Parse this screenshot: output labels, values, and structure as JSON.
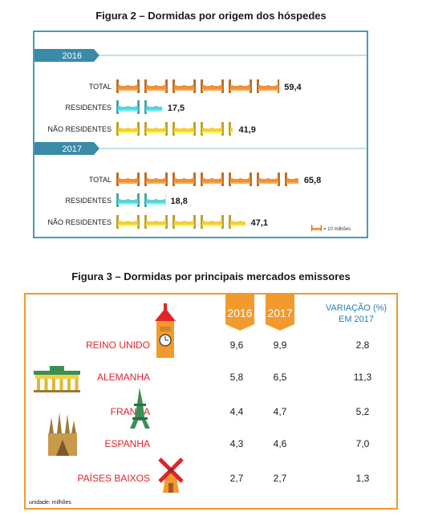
{
  "figure2": {
    "title": "Figura 2 – Dormidas por origem dos hóspedes",
    "legend": "= 10 milhões",
    "colors": {
      "total": "#f0903a",
      "residentes": "#5fd3d3",
      "nao_residentes": "#f2cf3e",
      "year_banner": "#3a8ba8"
    },
    "chart_data": {
      "type": "pictogram",
      "unit_value": 10,
      "groups": [
        {
          "year": "2016",
          "rows": [
            {
              "key": "total",
              "label": "TOTAL",
              "value": 59.4,
              "value_label": "59,4"
            },
            {
              "key": "residentes",
              "label": "RESIDENTES",
              "value": 17.5,
              "value_label": "17,5"
            },
            {
              "key": "nao_residentes",
              "label": "NÃO RESIDENTES",
              "value": 41.9,
              "value_label": "41,9"
            }
          ]
        },
        {
          "year": "2017",
          "rows": [
            {
              "key": "total",
              "label": "TOTAL",
              "value": 65.8,
              "value_label": "65,8"
            },
            {
              "key": "residentes",
              "label": "RESIDENTES",
              "value": 18.8,
              "value_label": "18,8"
            },
            {
              "key": "nao_residentes",
              "label": "NÃO RESIDENTES",
              "value": 47.1,
              "value_label": "47,1"
            }
          ]
        }
      ]
    }
  },
  "figure3": {
    "title": "Figura 3 – Dormidas por principais mercados emissores",
    "headers": [
      "2016",
      "2017",
      "VARIAÇÃO (%)",
      "EM 2017"
    ],
    "unit_note": "unidade: milhões",
    "colors": {
      "header": "#f39a2e",
      "country": "#e2232a",
      "variation": "#2a7fb0"
    },
    "chart_data": {
      "type": "table",
      "columns": [
        "2016",
        "2017",
        "VARIAÇÃO (%) EM 2017"
      ],
      "rows": [
        {
          "country": "REINO UNIDO",
          "icon": "big-ben-icon",
          "v2016": "9,6",
          "v2017": "9,9",
          "var": "2,8"
        },
        {
          "country": "ALEMANHA",
          "icon": "brandenburg-gate-icon",
          "v2016": "5,8",
          "v2017": "6,5",
          "var": "11,3"
        },
        {
          "country": "FRANÇA",
          "icon": "eiffel-tower-icon",
          "v2016": "4,4",
          "v2017": "4,7",
          "var": "5,2"
        },
        {
          "country": "ESPANHA",
          "icon": "sagrada-familia-icon",
          "v2016": "4,3",
          "v2017": "4,6",
          "var": "7,0"
        },
        {
          "country": "PAÍSES BAIXOS",
          "icon": "windmill-icon",
          "v2016": "2,7",
          "v2017": "2,7",
          "var": "1,3"
        }
      ]
    }
  }
}
